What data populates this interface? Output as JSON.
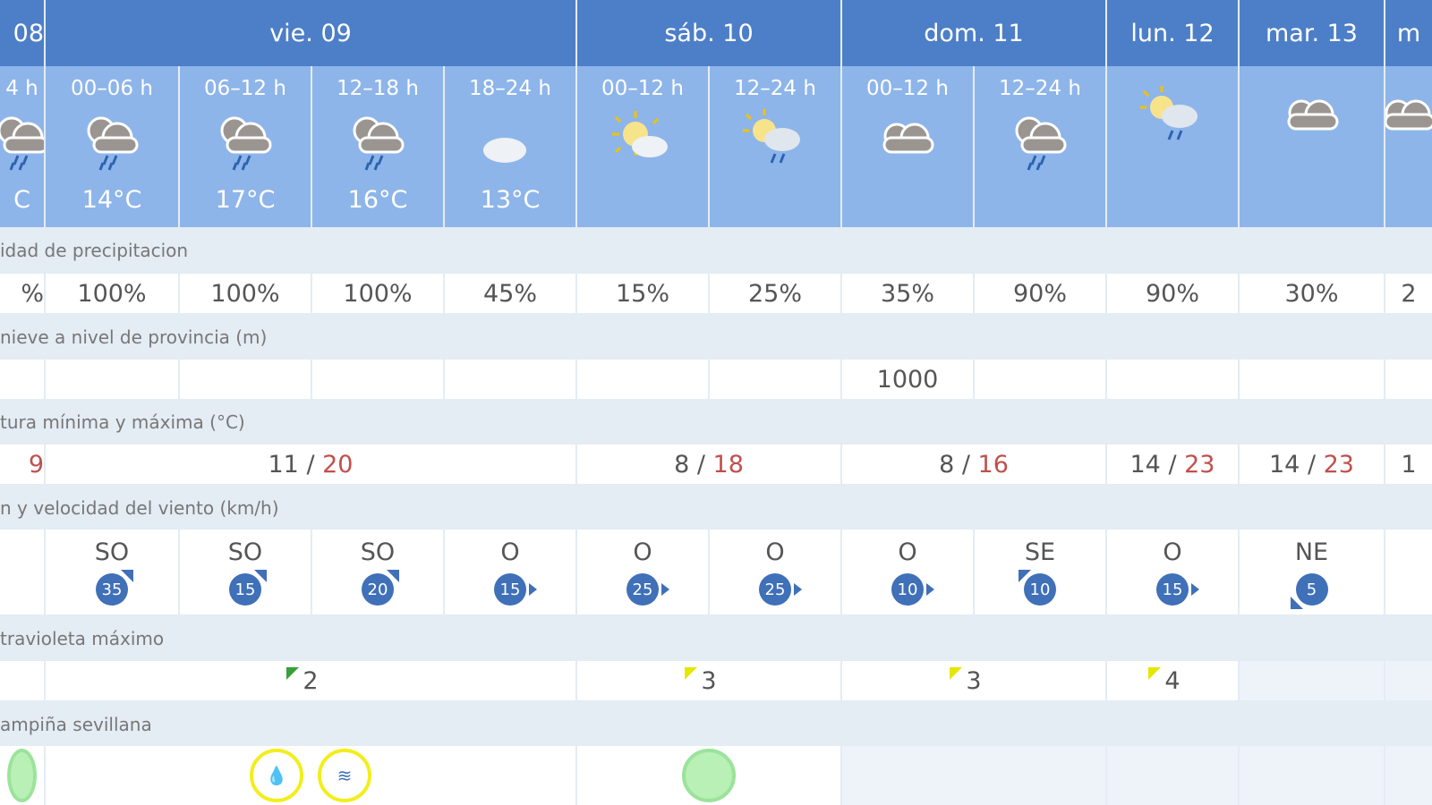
{
  "days": [
    {
      "label": "08",
      "span": 1
    },
    {
      "label": "vie. 09",
      "span": 4
    },
    {
      "label": "sáb. 10",
      "span": 2
    },
    {
      "label": "dom. 11",
      "span": 2
    },
    {
      "label": "lun. 12",
      "span": 1
    },
    {
      "label": "mar. 13",
      "span": 1
    },
    {
      "label": "m",
      "span": 1
    }
  ],
  "periods": [
    {
      "period": "4 h",
      "icon": "rain-clouds",
      "temp": "C"
    },
    {
      "period": "00–06 h",
      "icon": "rain-clouds",
      "temp": "14°C"
    },
    {
      "period": "06–12 h",
      "icon": "rain-clouds",
      "temp": "17°C"
    },
    {
      "period": "12–18 h",
      "icon": "rain-clouds",
      "temp": "16°C"
    },
    {
      "period": "18–24 h",
      "icon": "moon-cloud",
      "temp": "13°C"
    },
    {
      "period": "00–12 h",
      "icon": "sun-cloud",
      "temp": ""
    },
    {
      "period": "12–24 h",
      "icon": "sun-cloud-rain",
      "temp": ""
    },
    {
      "period": "00–12 h",
      "icon": "cloud",
      "temp": ""
    },
    {
      "period": "12–24 h",
      "icon": "rain-clouds",
      "temp": ""
    },
    {
      "period": "",
      "icon": "sun-cloud-rain",
      "temp": ""
    },
    {
      "period": "",
      "icon": "cloud",
      "temp": ""
    },
    {
      "period": "",
      "icon": "cloud",
      "temp": ""
    }
  ],
  "labels": {
    "precip": "idad de precipitacion",
    "snow": "nieve a nivel de provincia (m)",
    "temp": "tura mínima y máxima (°C)",
    "wind": "n y velocidad del viento (km/h)",
    "uv": "travioleta máximo",
    "warn": "ampiña sevillana"
  },
  "precip": [
    "%",
    "100%",
    "100%",
    "100%",
    "45%",
    "15%",
    "25%",
    "35%",
    "90%",
    "90%",
    "30%",
    "2"
  ],
  "snow": [
    "",
    "",
    "",
    "",
    "",
    "",
    "",
    "1000",
    "",
    "",
    "",
    ""
  ],
  "temps": [
    {
      "min": "",
      "max": "9",
      "span": 1
    },
    {
      "min": "11",
      "max": "20",
      "span": 4
    },
    {
      "min": "8",
      "max": "18",
      "span": 2
    },
    {
      "min": "8",
      "max": "16",
      "span": 2
    },
    {
      "min": "14",
      "max": "23",
      "span": 1
    },
    {
      "min": "14",
      "max": "23",
      "span": 1
    },
    {
      "min": "1",
      "max": "",
      "span": 1
    }
  ],
  "wind": [
    {
      "dir": "",
      "speed": ""
    },
    {
      "dir": "SO",
      "speed": "35"
    },
    {
      "dir": "SO",
      "speed": "15"
    },
    {
      "dir": "SO",
      "speed": "20"
    },
    {
      "dir": "O",
      "speed": "15"
    },
    {
      "dir": "O",
      "speed": "25"
    },
    {
      "dir": "O",
      "speed": "25"
    },
    {
      "dir": "O",
      "speed": "10"
    },
    {
      "dir": "SE",
      "speed": "10"
    },
    {
      "dir": "O",
      "speed": "15"
    },
    {
      "dir": "NE",
      "speed": "5"
    },
    {
      "dir": "",
      "speed": ""
    }
  ],
  "uv": [
    {
      "value": "",
      "span": 1,
      "color": ""
    },
    {
      "value": "2",
      "span": 4,
      "color": "#3aa03a"
    },
    {
      "value": "3",
      "span": 2,
      "color": "#e6e600"
    },
    {
      "value": "3",
      "span": 2,
      "color": "#e6e600"
    },
    {
      "value": "4",
      "span": 1,
      "color": "#e6e600"
    },
    {
      "value": "",
      "span": 1,
      "color": "",
      "tint": true
    },
    {
      "value": "",
      "span": 1,
      "color": "",
      "tint": true
    }
  ],
  "warnings": [
    {
      "span": 1,
      "icons": [
        "green"
      ]
    },
    {
      "span": 4,
      "icons": [
        "rain",
        "wind"
      ]
    },
    {
      "span": 2,
      "icons": [
        "green"
      ]
    },
    {
      "span": 2,
      "icons": [],
      "tint": true
    },
    {
      "span": 1,
      "icons": [],
      "tint": true
    },
    {
      "span": 1,
      "icons": [],
      "tint": true
    },
    {
      "span": 1,
      "icons": [],
      "tint": true
    }
  ],
  "colors": {
    "header": "#4d7fc8",
    "subheader": "#8eb5e9",
    "max_temp": "#c0504d",
    "wind_bubble": "#3f70b8"
  }
}
